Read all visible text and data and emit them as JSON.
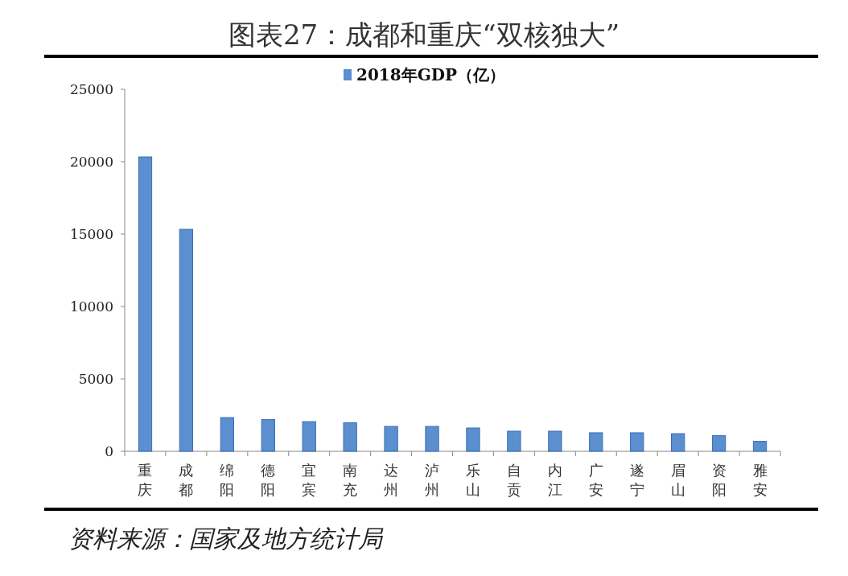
{
  "chart_data": {
    "type": "bar",
    "title": "图表27：成都和重庆“双核独大”",
    "categories": [
      "重庆",
      "成都",
      "绵阳",
      "德阳",
      "宜宾",
      "南充",
      "达州",
      "泸州",
      "乐山",
      "自贡",
      "内江",
      "广安",
      "遂宁",
      "眉山",
      "资阳",
      "雅安"
    ],
    "series": [
      {
        "name": "2018年GDP（亿）",
        "color": "#5b8fd0",
        "values": [
          20330,
          15330,
          2330,
          2190,
          2050,
          1970,
          1720,
          1720,
          1610,
          1390,
          1390,
          1280,
          1280,
          1220,
          1080,
          690
        ]
      }
    ],
    "ylim": [
      0,
      25000
    ],
    "yticks": [
      0,
      5000,
      10000,
      15000,
      20000,
      25000
    ],
    "grid": false,
    "legend": "top",
    "annotations": [
      "资料来源：国家及地方统计局"
    ]
  }
}
